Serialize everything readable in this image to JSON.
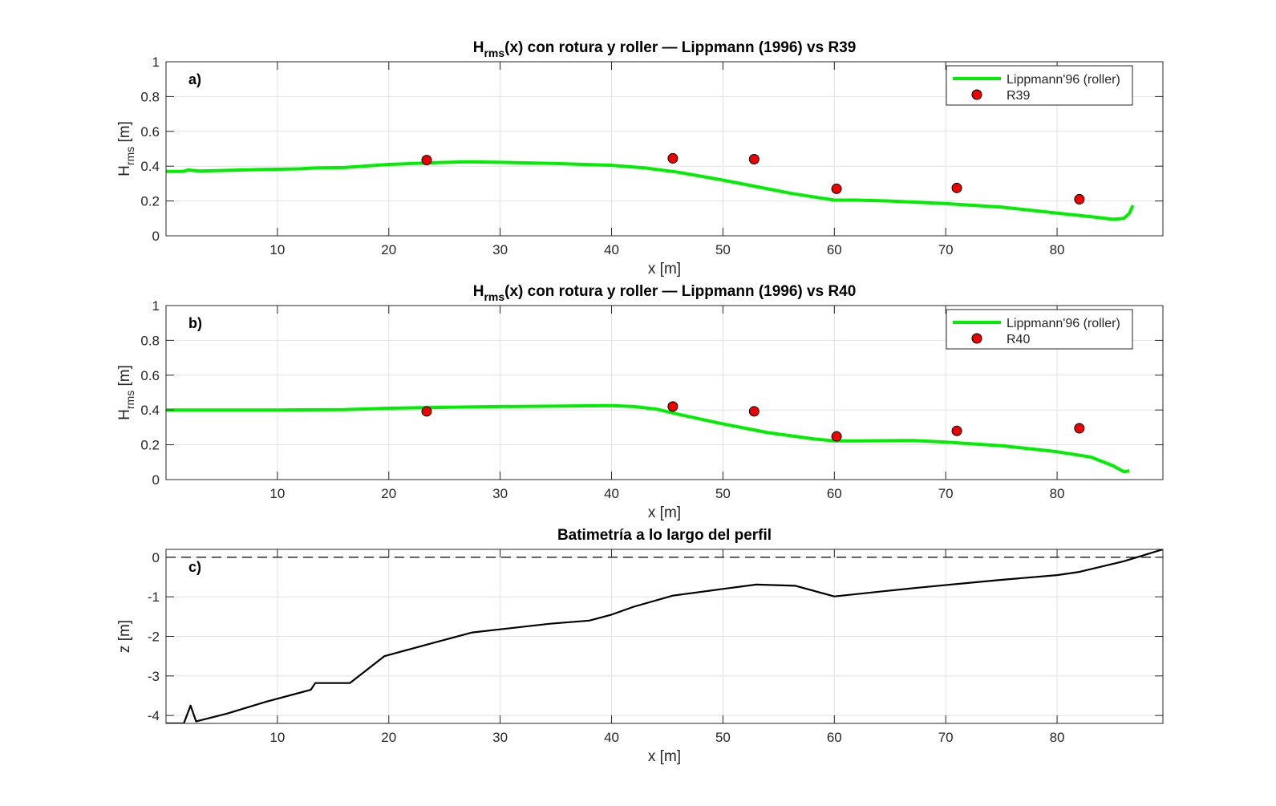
{
  "chart_data": [
    {
      "type": "line",
      "panel_tag": "a)",
      "title_main": "H",
      "title_sub": "rms",
      "title_rest": "(x)  con  rotura  y  roller  —  Lippmann  (1996)  vs  R39",
      "xlabel": "x [m]",
      "ylabel_main": "H",
      "ylabel_sub": "rms",
      "ylabel_unit": "  [m]",
      "xlim": [
        0,
        89.5
      ],
      "ylim": [
        0,
        1
      ],
      "xticks": [
        10,
        20,
        30,
        40,
        50,
        60,
        70,
        80
      ],
      "yticks": [
        0,
        0.2,
        0.4,
        0.6,
        0.8,
        1
      ],
      "grid": true,
      "legend_position": "top-right",
      "series": [
        {
          "name": "Lippmann'96 (roller)",
          "style": "line",
          "color": "#00ee00",
          "x": [
            0,
            1.5,
            2,
            2.5,
            3,
            5,
            8,
            12,
            13.5,
            16,
            20,
            24,
            27,
            30,
            35,
            40,
            43,
            46,
            50,
            54,
            56,
            58,
            60,
            62,
            65,
            70,
            75,
            80,
            83,
            85,
            86,
            86.5,
            86.8
          ],
          "y": [
            0.37,
            0.37,
            0.378,
            0.375,
            0.372,
            0.375,
            0.38,
            0.385,
            0.39,
            0.392,
            0.41,
            0.42,
            0.425,
            0.422,
            0.415,
            0.405,
            0.39,
            0.365,
            0.32,
            0.27,
            0.245,
            0.225,
            0.205,
            0.205,
            0.2,
            0.185,
            0.165,
            0.13,
            0.11,
            0.095,
            0.1,
            0.13,
            0.175
          ]
        },
        {
          "name": "R39",
          "style": "marker",
          "color": "#ee0000",
          "x": [
            23.4,
            45.5,
            52.8,
            60.2,
            71,
            82
          ],
          "y": [
            0.435,
            0.445,
            0.44,
            0.27,
            0.275,
            0.21
          ]
        }
      ]
    },
    {
      "type": "line",
      "panel_tag": "b)",
      "title_main": "H",
      "title_sub": "rms",
      "title_rest": "(x)  con  rotura  y  roller  —  Lippmann  (1996)  vs  R40",
      "xlabel": "x [m]",
      "ylabel_main": "H",
      "ylabel_sub": "rms",
      "ylabel_unit": "  [m]",
      "xlim": [
        0,
        89.5
      ],
      "ylim": [
        0,
        1
      ],
      "xticks": [
        10,
        20,
        30,
        40,
        50,
        60,
        70,
        80
      ],
      "yticks": [
        0,
        0.2,
        0.4,
        0.6,
        0.8,
        1
      ],
      "grid": true,
      "legend_position": "top-right",
      "series": [
        {
          "name": "Lippmann'96 (roller)",
          "style": "line",
          "color": "#00ee00",
          "x": [
            0,
            10,
            16,
            20,
            25,
            30,
            35,
            40,
            42,
            44,
            46,
            50,
            54,
            58,
            60,
            62,
            67,
            70,
            75,
            80,
            83,
            85,
            86,
            86.5
          ],
          "y": [
            0.4,
            0.4,
            0.402,
            0.41,
            0.415,
            0.42,
            0.422,
            0.425,
            0.42,
            0.405,
            0.375,
            0.32,
            0.27,
            0.235,
            0.222,
            0.222,
            0.225,
            0.215,
            0.195,
            0.16,
            0.13,
            0.08,
            0.045,
            0.05
          ]
        },
        {
          "name": "R40",
          "style": "marker",
          "color": "#ee0000",
          "x": [
            23.4,
            45.5,
            52.8,
            60.2,
            71,
            82
          ],
          "y": [
            0.392,
            0.42,
            0.392,
            0.248,
            0.28,
            0.295
          ]
        }
      ]
    },
    {
      "type": "line",
      "panel_tag": "c)",
      "title": "Batimetría a lo largo del perfil",
      "xlabel": "x [m]",
      "ylabel": "z [m]",
      "xlim": [
        0,
        89.5
      ],
      "ylim": [
        -4.2,
        0.2
      ],
      "xticks": [
        10,
        20,
        30,
        40,
        50,
        60,
        70,
        80
      ],
      "yticks": [
        -4,
        -3,
        -2,
        -1,
        0
      ],
      "grid": true,
      "reference_line": {
        "y": 0,
        "style": "dashed"
      },
      "series": [
        {
          "style": "line",
          "color": "#000000",
          "x": [
            0,
            1.6,
            2.2,
            2.7,
            5.5,
            9,
            13,
            13.4,
            16.5,
            19.6,
            23.5,
            27.5,
            34.5,
            38,
            40,
            42,
            45.5,
            50,
            53,
            56.5,
            60,
            64,
            67.5,
            72,
            75,
            80,
            82,
            86,
            89.5
          ],
          "y": [
            -4.2,
            -4.2,
            -3.75,
            -4.15,
            -3.95,
            -3.65,
            -3.35,
            -3.18,
            -3.18,
            -2.5,
            -2.2,
            -1.9,
            -1.68,
            -1.6,
            -1.45,
            -1.25,
            -0.97,
            -0.8,
            -0.69,
            -0.72,
            -0.99,
            -0.87,
            -0.77,
            -0.65,
            -0.57,
            -0.45,
            -0.37,
            -0.1,
            0.2
          ]
        }
      ]
    }
  ]
}
